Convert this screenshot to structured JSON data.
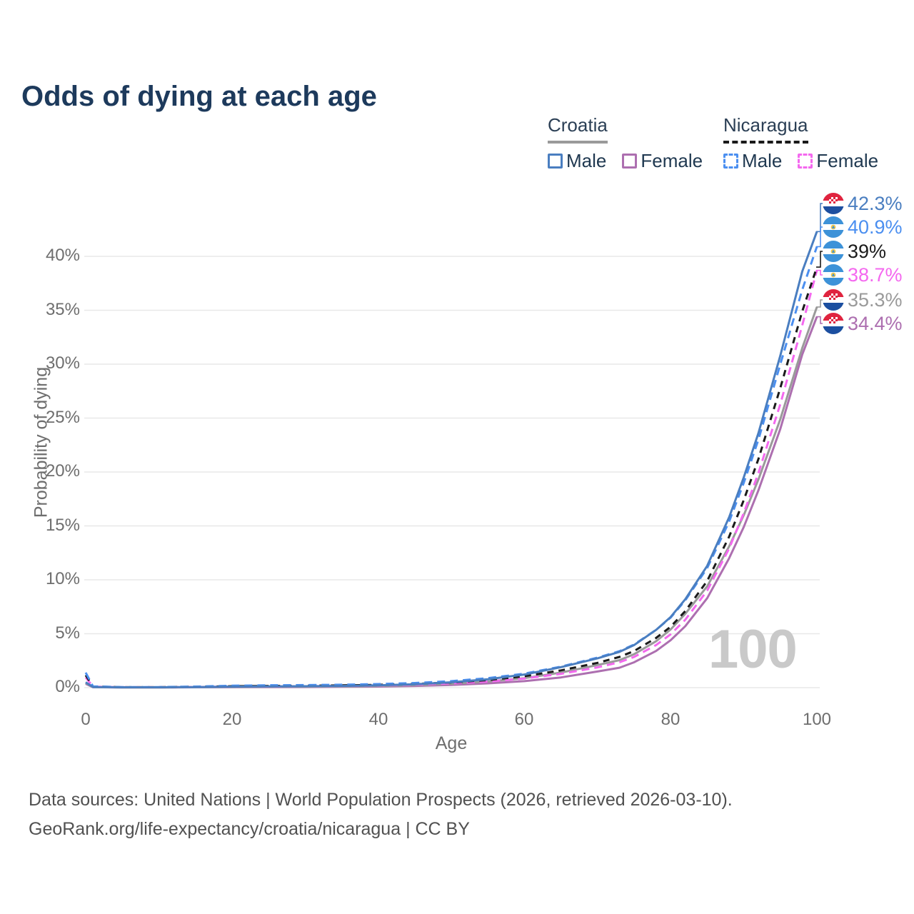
{
  "title": "Odds of dying at each age",
  "legend": {
    "groups": [
      {
        "label": "Croatia",
        "line_style": "solid",
        "line_color": "#9a9a9a",
        "items": [
          {
            "label": "Male",
            "color": "#4a7ec0",
            "dashed": false
          },
          {
            "label": "Female",
            "color": "#ad6fb0",
            "dashed": false
          }
        ]
      },
      {
        "label": "Nicaragua",
        "line_style": "dashed",
        "line_color": "#1a1a1a",
        "items": [
          {
            "label": "Male",
            "color": "#4b8ff0",
            "dashed": true
          },
          {
            "label": "Female",
            "color": "#f468ef",
            "dashed": true
          }
        ]
      }
    ]
  },
  "chart_data": {
    "type": "line",
    "title": "Odds of dying at each age",
    "xlabel": "Age",
    "ylabel": "Probability of dying",
    "xlim": [
      0,
      100
    ],
    "ylim_percent": [
      0,
      43.5
    ],
    "grid": "horizontal",
    "legend_position": "top-right",
    "age_counter_watermark": "100",
    "x_ticks": [
      "0",
      "20",
      "40",
      "60",
      "80",
      "100"
    ],
    "x_tick_values": [
      0,
      20,
      40,
      60,
      80,
      100
    ],
    "y_ticks": [
      "0%",
      "5%",
      "10%",
      "15%",
      "20%",
      "25%",
      "30%",
      "35%",
      "40%"
    ],
    "y_tick_values": [
      0,
      5,
      10,
      15,
      20,
      25,
      30,
      35,
      40
    ],
    "series": [
      {
        "name": "Croatia Male",
        "country": "Croatia",
        "sex": "Male",
        "flag": "croatia",
        "color": "#4a7ec0",
        "dashed": false,
        "end_label": "42.3%",
        "end_value": 42.3,
        "label_row": 0,
        "points": [
          [
            0,
            0.5
          ],
          [
            1,
            0.06
          ],
          [
            5,
            0.03
          ],
          [
            10,
            0.03
          ],
          [
            15,
            0.05
          ],
          [
            20,
            0.09
          ],
          [
            25,
            0.11
          ],
          [
            30,
            0.13
          ],
          [
            35,
            0.16
          ],
          [
            40,
            0.21
          ],
          [
            45,
            0.32
          ],
          [
            50,
            0.5
          ],
          [
            55,
            0.78
          ],
          [
            60,
            1.22
          ],
          [
            65,
            1.9
          ],
          [
            70,
            2.72
          ],
          [
            73,
            3.32
          ],
          [
            75,
            3.95
          ],
          [
            78,
            5.35
          ],
          [
            80,
            6.55
          ],
          [
            82,
            8.2
          ],
          [
            85,
            11.3
          ],
          [
            88,
            15.8
          ],
          [
            90,
            19.5
          ],
          [
            92,
            23.6
          ],
          [
            95,
            30.8
          ],
          [
            98,
            38.6
          ],
          [
            100,
            42.3
          ]
        ]
      },
      {
        "name": "Nicaragua Male",
        "country": "Nicaragua",
        "sex": "Male",
        "flag": "nicaragua",
        "color": "#4b8ff0",
        "dashed": true,
        "end_label": "40.9%",
        "end_value": 40.9,
        "label_row": 1,
        "points": [
          [
            0,
            1.4
          ],
          [
            1,
            0.12
          ],
          [
            5,
            0.05
          ],
          [
            10,
            0.05
          ],
          [
            15,
            0.1
          ],
          [
            20,
            0.18
          ],
          [
            25,
            0.22
          ],
          [
            30,
            0.24
          ],
          [
            35,
            0.27
          ],
          [
            40,
            0.33
          ],
          [
            45,
            0.43
          ],
          [
            50,
            0.6
          ],
          [
            55,
            0.88
          ],
          [
            60,
            1.3
          ],
          [
            65,
            1.95
          ],
          [
            70,
            2.78
          ],
          [
            73,
            3.38
          ],
          [
            75,
            4.0
          ],
          [
            78,
            5.35
          ],
          [
            80,
            6.5
          ],
          [
            82,
            8.1
          ],
          [
            85,
            11.1
          ],
          [
            88,
            15.4
          ],
          [
            90,
            19.0
          ],
          [
            92,
            23.0
          ],
          [
            95,
            30.0
          ],
          [
            98,
            36.9
          ],
          [
            100,
            40.9
          ]
        ]
      },
      {
        "name": "Nicaragua",
        "country": "Nicaragua",
        "sex": "Both",
        "flag": "nicaragua",
        "color": "#1a1a1a",
        "dashed": true,
        "end_label": "39%",
        "end_value": 39.0,
        "label_row": 2,
        "points": [
          [
            0,
            1.15
          ],
          [
            1,
            0.1
          ],
          [
            5,
            0.04
          ],
          [
            10,
            0.04
          ],
          [
            15,
            0.08
          ],
          [
            20,
            0.13
          ],
          [
            25,
            0.16
          ],
          [
            30,
            0.18
          ],
          [
            35,
            0.21
          ],
          [
            40,
            0.26
          ],
          [
            45,
            0.35
          ],
          [
            50,
            0.48
          ],
          [
            55,
            0.7
          ],
          [
            60,
            1.06
          ],
          [
            65,
            1.6
          ],
          [
            70,
            2.3
          ],
          [
            73,
            2.85
          ],
          [
            75,
            3.4
          ],
          [
            78,
            4.6
          ],
          [
            80,
            5.65
          ],
          [
            82,
            7.1
          ],
          [
            85,
            9.9
          ],
          [
            88,
            14.0
          ],
          [
            90,
            17.4
          ],
          [
            92,
            21.2
          ],
          [
            95,
            27.8
          ],
          [
            98,
            34.9
          ],
          [
            100,
            39.0
          ]
        ]
      },
      {
        "name": "Nicaragua Female",
        "country": "Nicaragua",
        "sex": "Female",
        "flag": "nicaragua",
        "color": "#f468ef",
        "dashed": true,
        "end_label": "38.7%",
        "end_value": 38.7,
        "label_row": 3,
        "points": [
          [
            0,
            0.95
          ],
          [
            1,
            0.09
          ],
          [
            5,
            0.04
          ],
          [
            10,
            0.04
          ],
          [
            15,
            0.06
          ],
          [
            20,
            0.09
          ],
          [
            25,
            0.11
          ],
          [
            30,
            0.13
          ],
          [
            35,
            0.16
          ],
          [
            40,
            0.2
          ],
          [
            45,
            0.28
          ],
          [
            50,
            0.39
          ],
          [
            55,
            0.56
          ],
          [
            60,
            0.85
          ],
          [
            65,
            1.28
          ],
          [
            70,
            1.88
          ],
          [
            73,
            2.35
          ],
          [
            75,
            2.85
          ],
          [
            78,
            3.95
          ],
          [
            80,
            4.95
          ],
          [
            82,
            6.3
          ],
          [
            85,
            9.0
          ],
          [
            88,
            12.9
          ],
          [
            90,
            16.2
          ],
          [
            92,
            19.9
          ],
          [
            95,
            26.3
          ],
          [
            98,
            33.6
          ],
          [
            100,
            38.7
          ]
        ]
      },
      {
        "name": "Croatia",
        "country": "Croatia",
        "sex": "Both",
        "flag": "croatia",
        "color": "#9a9a9a",
        "dashed": false,
        "end_label": "35.3%",
        "end_value": 35.3,
        "label_row": 4,
        "points": [
          [
            0,
            0.42
          ],
          [
            1,
            0.05
          ],
          [
            5,
            0.02
          ],
          [
            10,
            0.02
          ],
          [
            15,
            0.04
          ],
          [
            20,
            0.06
          ],
          [
            25,
            0.08
          ],
          [
            30,
            0.09
          ],
          [
            35,
            0.11
          ],
          [
            40,
            0.15
          ],
          [
            45,
            0.23
          ],
          [
            50,
            0.36
          ],
          [
            55,
            0.57
          ],
          [
            60,
            0.88
          ],
          [
            65,
            1.4
          ],
          [
            70,
            2.1
          ],
          [
            73,
            2.55
          ],
          [
            75,
            3.1
          ],
          [
            78,
            4.3
          ],
          [
            80,
            5.4
          ],
          [
            82,
            6.85
          ],
          [
            85,
            9.4
          ],
          [
            88,
            13.1
          ],
          [
            90,
            16.0
          ],
          [
            92,
            19.3
          ],
          [
            95,
            24.9
          ],
          [
            98,
            31.5
          ],
          [
            100,
            35.3
          ]
        ]
      },
      {
        "name": "Croatia Female",
        "country": "Croatia",
        "sex": "Female",
        "flag": "croatia",
        "color": "#ad6fb0",
        "dashed": false,
        "end_label": "34.4%",
        "end_value": 34.4,
        "label_row": 5,
        "points": [
          [
            0,
            0.35
          ],
          [
            1,
            0.04
          ],
          [
            5,
            0.02
          ],
          [
            10,
            0.02
          ],
          [
            15,
            0.03
          ],
          [
            20,
            0.04
          ],
          [
            25,
            0.05
          ],
          [
            30,
            0.06
          ],
          [
            35,
            0.08
          ],
          [
            40,
            0.1
          ],
          [
            45,
            0.16
          ],
          [
            50,
            0.25
          ],
          [
            55,
            0.4
          ],
          [
            60,
            0.6
          ],
          [
            65,
            0.95
          ],
          [
            70,
            1.5
          ],
          [
            73,
            1.85
          ],
          [
            75,
            2.35
          ],
          [
            78,
            3.4
          ],
          [
            80,
            4.4
          ],
          [
            82,
            5.7
          ],
          [
            85,
            8.3
          ],
          [
            88,
            12.0
          ],
          [
            90,
            14.9
          ],
          [
            92,
            18.3
          ],
          [
            95,
            24.0
          ],
          [
            98,
            30.9
          ],
          [
            100,
            34.4
          ]
        ]
      }
    ]
  },
  "footer": {
    "line1": "Data sources: United Nations | World Population Prospects (2026, retrieved 2026-03-10).",
    "line2": "GeoRank.org/life-expectancy/croatia/nicaragua | CC BY"
  }
}
